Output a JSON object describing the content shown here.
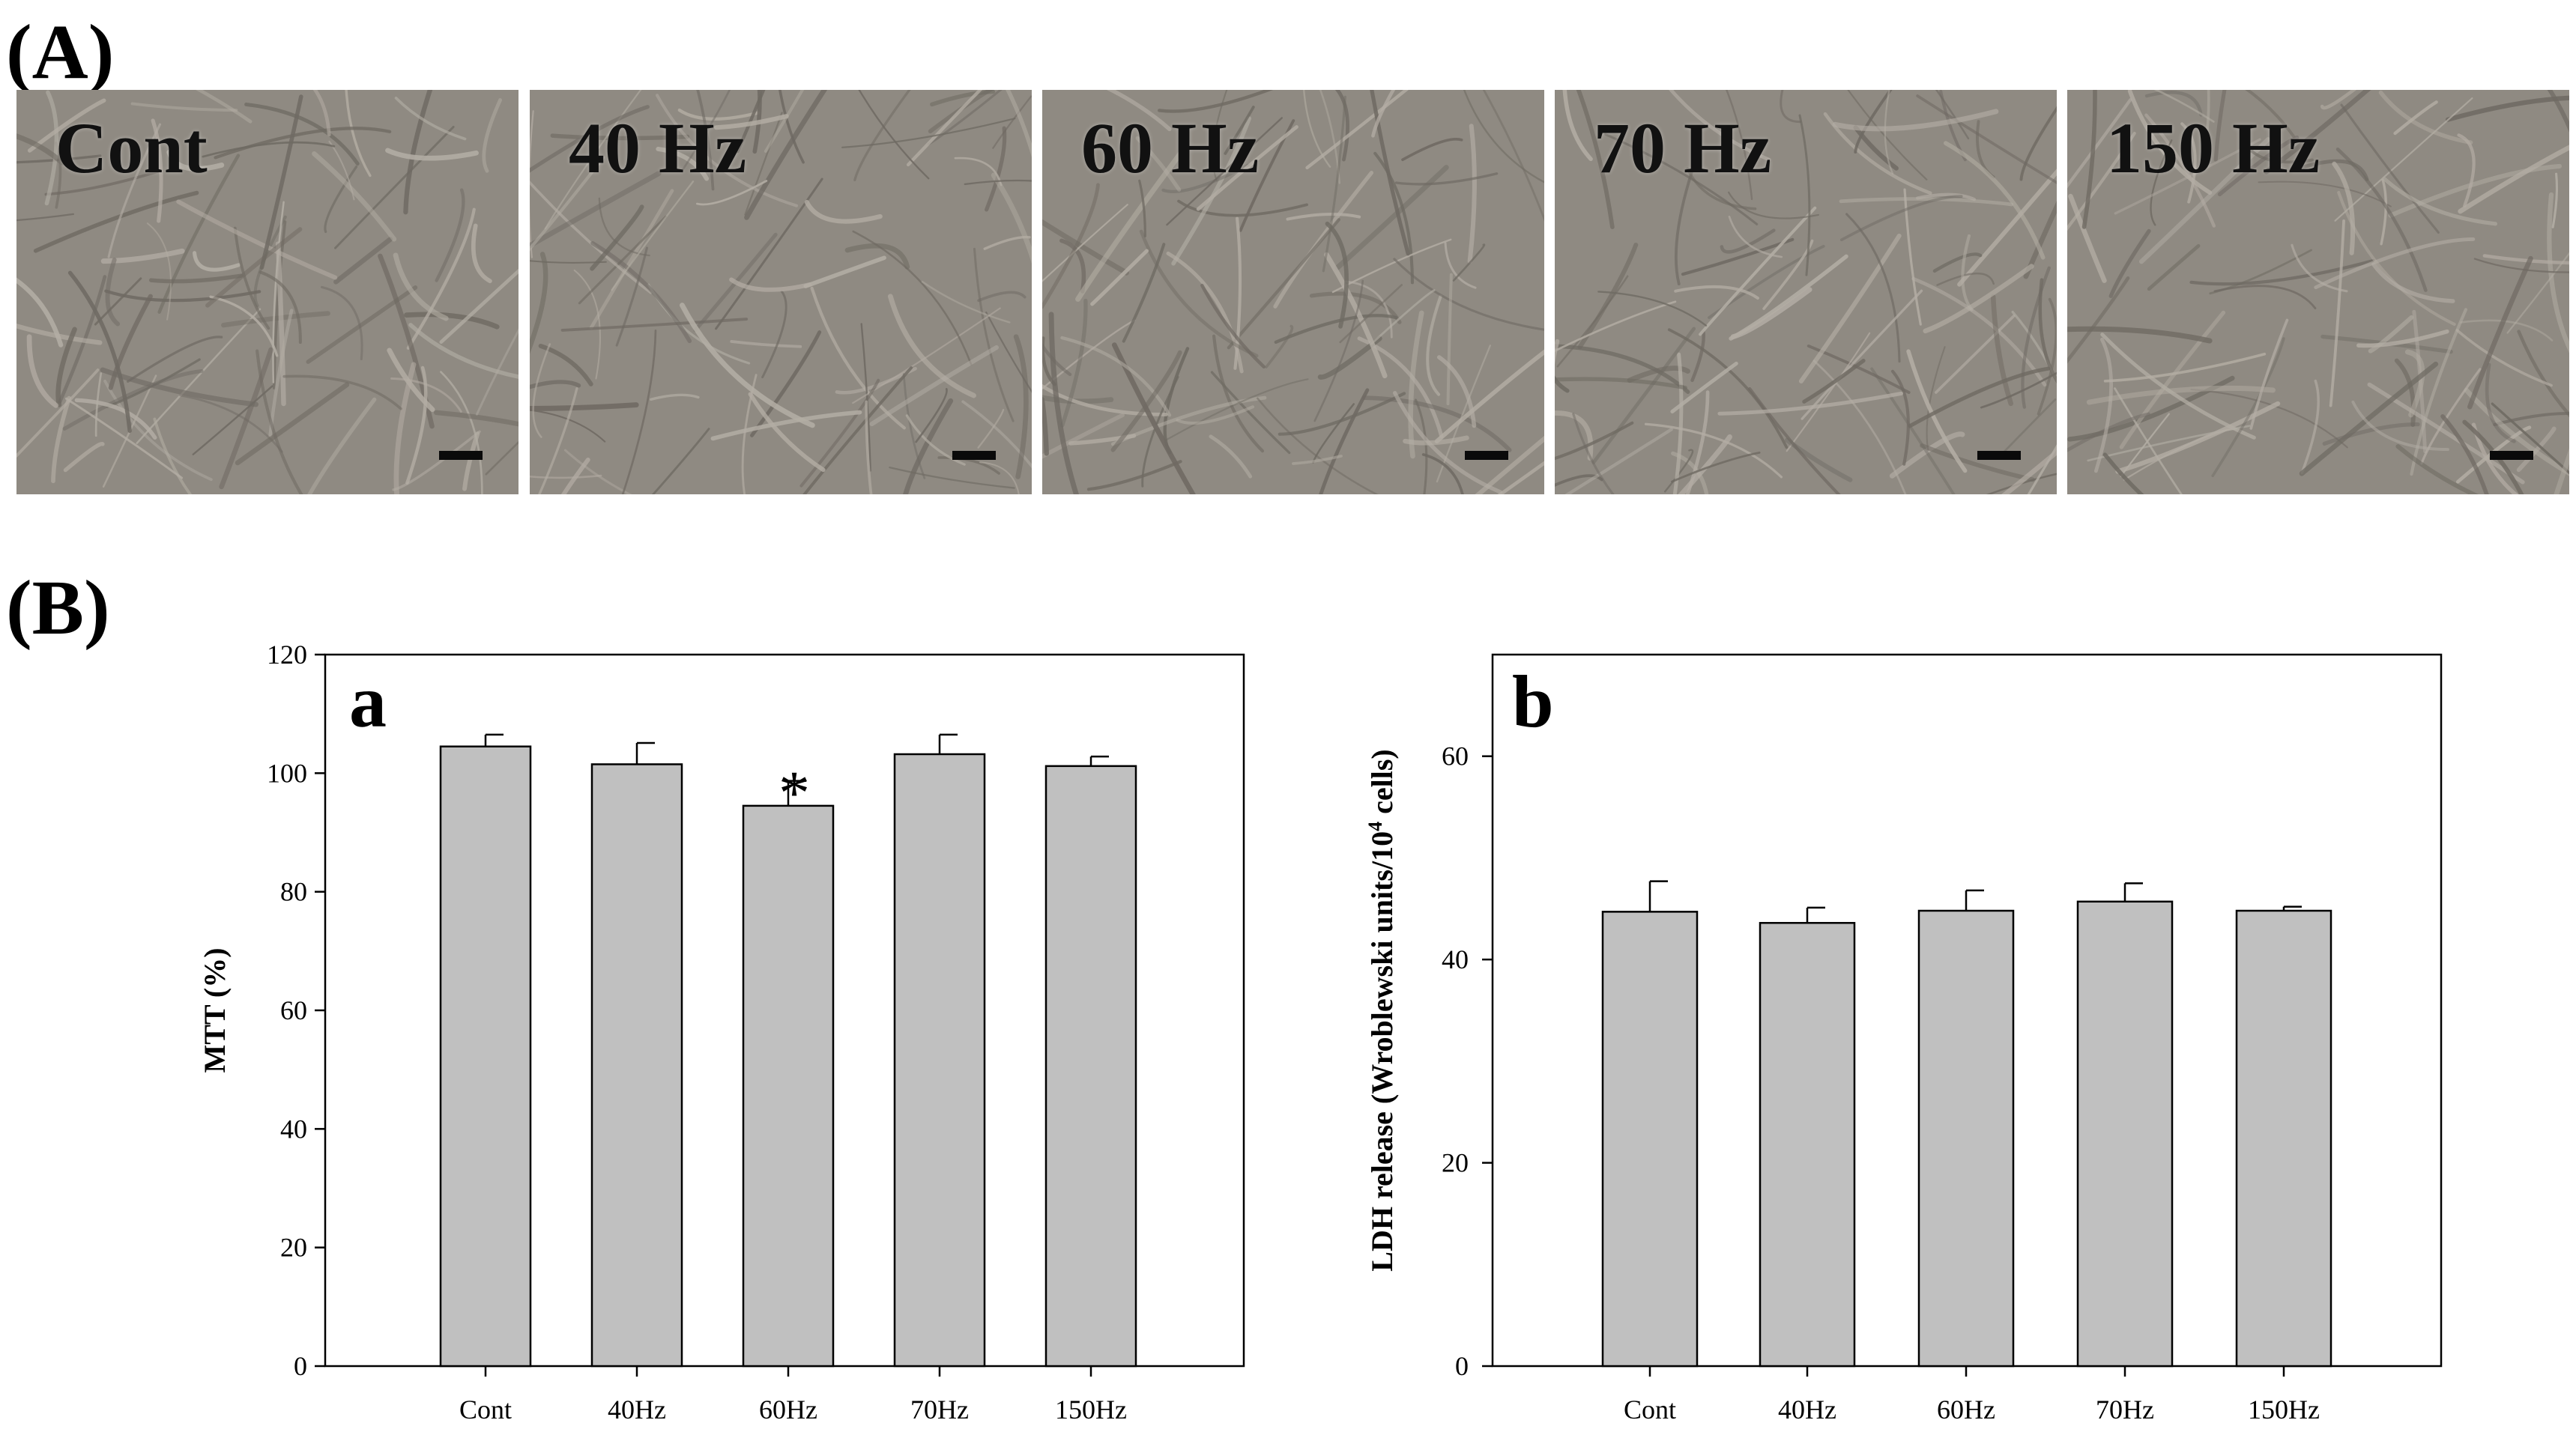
{
  "panel_labels": {
    "A": "(A)",
    "B": "(B)"
  },
  "micrographs": [
    {
      "label": "Cont"
    },
    {
      "label": "40 Hz"
    },
    {
      "label": "60 Hz"
    },
    {
      "label": "70 Hz"
    },
    {
      "label": "150 Hz"
    }
  ],
  "colors": {
    "bar_fill": "#c0c0c0",
    "photo_base": "#8f8a82",
    "cell": "#b3ada4"
  },
  "chart_data": [
    {
      "type": "bar",
      "panel": "a",
      "categories": [
        "Cont",
        "40Hz",
        "60Hz",
        "70Hz",
        "150Hz"
      ],
      "values": [
        104.5,
        101.5,
        94.5,
        103.2,
        101.2
      ],
      "errors": [
        2.0,
        3.6,
        4.2,
        3.3,
        1.6
      ],
      "annotations": [
        {
          "category": "60Hz",
          "text": "*"
        }
      ],
      "title": "",
      "xlabel": "",
      "ylabel": "MTT (%)",
      "ylim": [
        0,
        120
      ],
      "yticks": [
        0,
        20,
        40,
        60,
        80,
        100,
        120
      ]
    },
    {
      "type": "bar",
      "panel": "b",
      "categories": [
        "Cont",
        "40Hz",
        "60Hz",
        "70Hz",
        "150Hz"
      ],
      "values": [
        44.7,
        43.6,
        44.8,
        45.7,
        44.8
      ],
      "errors": [
        3.0,
        1.5,
        2.0,
        1.8,
        0.4
      ],
      "annotations": [],
      "title": "",
      "xlabel": "",
      "ylabel": "LDH release (Wroblewski units/10⁴ cells)",
      "ylabel_parts": {
        "pre": "LDH release (Wroblewski units/10",
        "sup": "4",
        "post": " cells)"
      },
      "ylim": [
        0,
        70
      ],
      "yticks": [
        0,
        20,
        40,
        60
      ]
    }
  ]
}
